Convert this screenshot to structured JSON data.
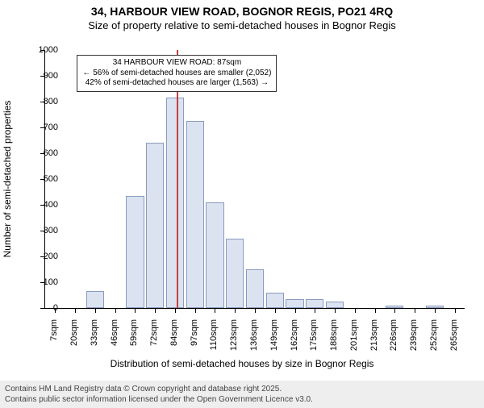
{
  "title": {
    "line1": "34, HARBOUR VIEW ROAD, BOGNOR REGIS, PO21 4RQ",
    "line2": "Size of property relative to semi-detached houses in Bognor Regis"
  },
  "chart": {
    "type": "histogram",
    "y_axis_title": "Number of semi-detached properties",
    "x_axis_title": "Distribution of semi-detached houses by size in Bognor Regis",
    "ylim": [
      0,
      1000
    ],
    "ytick_step": 100,
    "background_color": "#ffffff",
    "bar_fill_color": "#dbe3f0",
    "bar_border_color": "#8a9abf",
    "axis_color": "#000000",
    "marker_color": "#c44040",
    "marker_x_category_index": 6,
    "categories": [
      "7sqm",
      "20sqm",
      "33sqm",
      "46sqm",
      "59sqm",
      "72sqm",
      "84sqm",
      "97sqm",
      "110sqm",
      "123sqm",
      "136sqm",
      "149sqm",
      "162sqm",
      "175sqm",
      "188sqm",
      "201sqm",
      "213sqm",
      "226sqm",
      "239sqm",
      "252sqm",
      "265sqm"
    ],
    "values": [
      0,
      0,
      65,
      0,
      435,
      640,
      815,
      725,
      410,
      270,
      150,
      60,
      35,
      35,
      25,
      0,
      0,
      8,
      0,
      8,
      0
    ],
    "bar_width_ratio": 0.9,
    "label_fontsize": 11,
    "title_fontsize": 14
  },
  "annotation": {
    "line1": "34 HARBOUR VIEW ROAD: 87sqm",
    "line2": "← 56% of semi-detached houses are smaller (2,052)",
    "line3": "42% of semi-detached houses are larger (1,563) →"
  },
  "footer": {
    "line1": "Contains HM Land Registry data © Crown copyright and database right 2025.",
    "line2": "Contains public sector information licensed under the Open Government Licence v3.0."
  }
}
